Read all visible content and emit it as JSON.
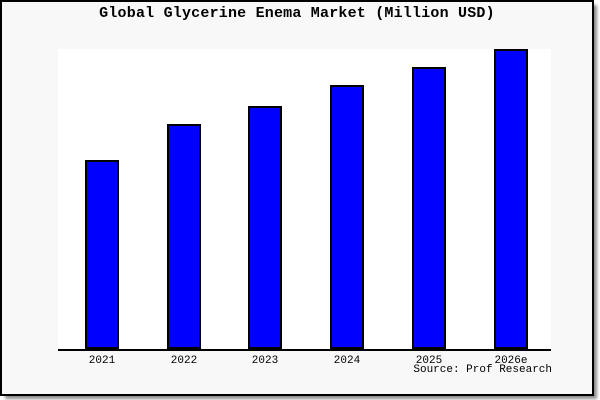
{
  "window": {
    "title": "Global Glycerine Enema Market (Million USD)"
  },
  "chart_data": {
    "type": "bar",
    "title": "Global Glycerine Enema Market (Million USD)",
    "categories": [
      "2021",
      "2022",
      "2023",
      "2024",
      "2025",
      "2026e"
    ],
    "values": [
      63,
      75,
      81,
      88,
      94,
      100
    ],
    "values_note": "No y-axis or value labels shown in image; values are relative bar heights with tallest bar (2026e) = 100",
    "xlabel": "",
    "ylabel": "",
    "ylim": [
      0,
      100
    ],
    "grid": false,
    "legend": false,
    "bar_color": "#0000ff",
    "bar_border_color": "#000000",
    "axis_color": "#000000",
    "plot_bg": "#ffffff",
    "page_bg": "#f8f8f8"
  },
  "footer": {
    "source_label": "Source: Prof Research"
  }
}
